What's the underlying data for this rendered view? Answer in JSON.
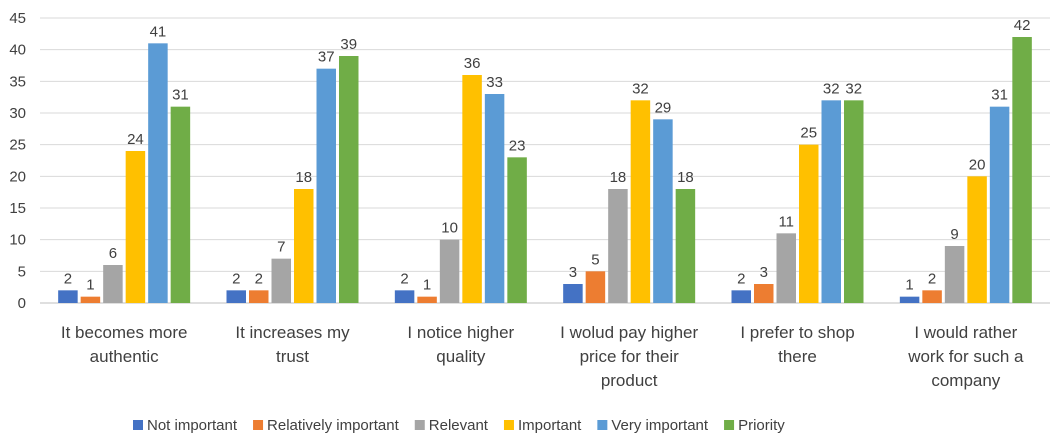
{
  "chart_data": {
    "type": "bar",
    "title": "",
    "xlabel": "",
    "ylabel": "",
    "ylim": [
      0,
      45
    ],
    "yticks": [
      0,
      5,
      10,
      15,
      20,
      25,
      30,
      35,
      40,
      45
    ],
    "grid": true,
    "legend_position": "bottom",
    "categories": [
      [
        "It becomes more",
        "authentic"
      ],
      [
        "It increases my",
        "trust"
      ],
      [
        "I notice higher",
        "quality"
      ],
      [
        "I wolud pay higher",
        "price for their",
        "product"
      ],
      [
        "I prefer to shop",
        "there"
      ],
      [
        "I would rather",
        "work for such a",
        "company"
      ]
    ],
    "series": [
      {
        "name": "Not important",
        "color": "#4472C4",
        "values": [
          2,
          2,
          2,
          3,
          2,
          1
        ]
      },
      {
        "name": "Relatively important",
        "color": "#ED7D31",
        "values": [
          1,
          2,
          1,
          5,
          3,
          2
        ]
      },
      {
        "name": "Relevant",
        "color": "#A5A5A5",
        "values": [
          6,
          7,
          10,
          18,
          11,
          9
        ]
      },
      {
        "name": "Important",
        "color": "#FFC000",
        "values": [
          24,
          18,
          36,
          32,
          25,
          20
        ]
      },
      {
        "name": "Very important",
        "color": "#5B9BD5",
        "values": [
          41,
          37,
          33,
          29,
          32,
          31
        ]
      },
      {
        "name": "Priority",
        "color": "#70AD47",
        "values": [
          31,
          39,
          23,
          18,
          32,
          42
        ]
      }
    ]
  }
}
